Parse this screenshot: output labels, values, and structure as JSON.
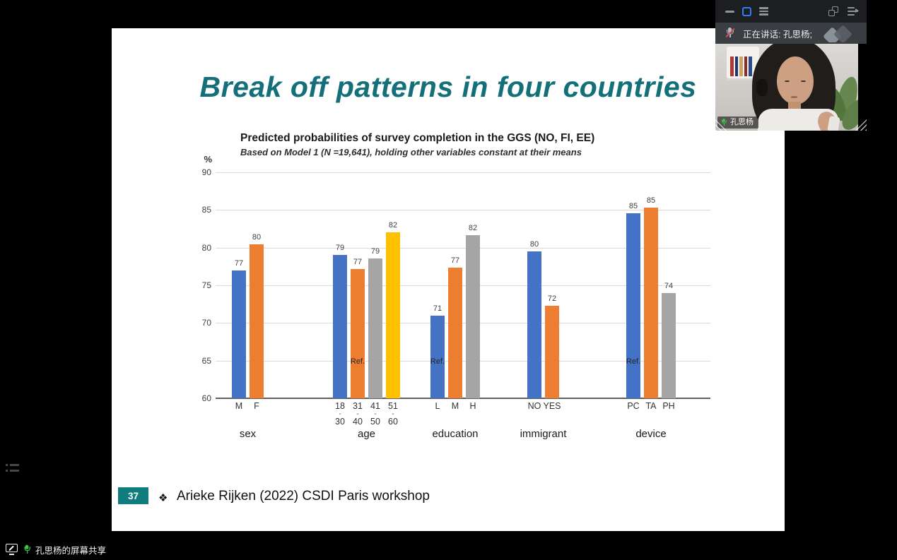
{
  "meeting": {
    "titlebar": {
      "icons": [
        "minimize-icon",
        "restore-window-icon",
        "menu-icon",
        "float-window-icon",
        "collapse-panel-icon"
      ]
    },
    "speaking_banner": {
      "text": "正在讲话: 孔思杨;",
      "mic_state": "muted"
    },
    "video_tile": {
      "participant_name": "孔思杨",
      "mic_color": "#3ec24e"
    }
  },
  "status_bar": {
    "share_text": "孔思杨的屏幕共享"
  },
  "slide": {
    "title": "Break off patterns in four countries",
    "title_color": "#136f78",
    "page_number": "37",
    "bullet": "❖",
    "citation": "Arieke Rijken (2022) CSDI Paris workshop"
  },
  "chart_data": {
    "type": "bar",
    "title": "Predicted probabilities of survey completion in the GGS (NO, FI, EE)",
    "subtitle": "Based on Model 1 (N =19,641), holding other variables constant at their means",
    "ylabel": "%",
    "ylim": [
      60,
      90
    ],
    "yticks": [
      60,
      65,
      70,
      75,
      80,
      85,
      90
    ],
    "grid": true,
    "legend": false,
    "ref_label": "Ref.",
    "colors": {
      "blue": "#4472C4",
      "orange": "#ED7D31",
      "gray": "#A5A5A5",
      "yellow": "#FFC000"
    },
    "groups": [
      {
        "label": "sex",
        "bars": [
          {
            "tick": "M",
            "display": "77",
            "value": 77,
            "color": "blue"
          },
          {
            "tick": "F",
            "display": "80",
            "value": 80.4,
            "color": "orange"
          }
        ]
      },
      {
        "label": "age",
        "bars": [
          {
            "tick": "18-30",
            "display": "79",
            "value": 79,
            "color": "blue"
          },
          {
            "tick": "31-40",
            "display": "77",
            "value": 77.2,
            "color": "orange",
            "ref": true
          },
          {
            "tick": "41-50",
            "display": "79",
            "value": 78.6,
            "color": "gray"
          },
          {
            "tick": "51-60",
            "display": "82",
            "value": 82,
            "color": "yellow"
          }
        ]
      },
      {
        "label": "education",
        "bars": [
          {
            "tick": "L",
            "display": "71",
            "value": 71,
            "color": "blue",
            "ref": true
          },
          {
            "tick": "M",
            "display": "77",
            "value": 77.3,
            "color": "orange"
          },
          {
            "tick": "H",
            "display": "82",
            "value": 81.7,
            "color": "gray"
          }
        ]
      },
      {
        "label": "immigrant",
        "bars": [
          {
            "tick": "NO",
            "display": "80",
            "value": 79.5,
            "color": "blue"
          },
          {
            "tick": "YES",
            "display": "72",
            "value": 72.3,
            "color": "orange"
          }
        ]
      },
      {
        "label": "device",
        "bars": [
          {
            "tick": "PC",
            "display": "85",
            "value": 84.6,
            "color": "blue",
            "ref": true
          },
          {
            "tick": "TA",
            "display": "85",
            "value": 85.3,
            "color": "orange"
          },
          {
            "tick": "PH",
            "display": "74",
            "value": 74,
            "color": "gray"
          }
        ]
      }
    ]
  }
}
